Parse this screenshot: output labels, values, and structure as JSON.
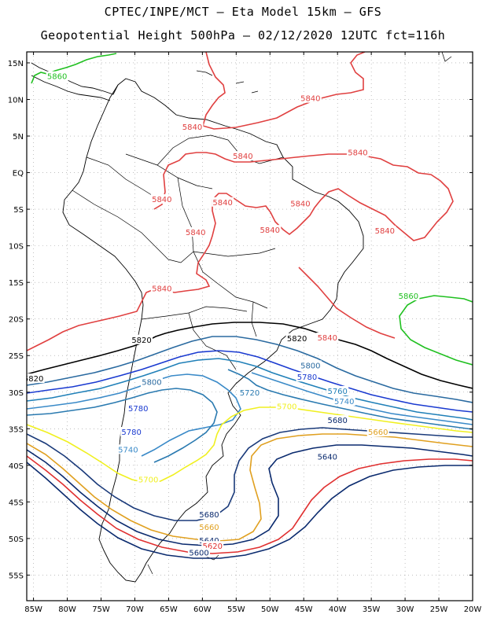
{
  "header": {
    "line1": "CPTEC/INPE/MCT –  Eta Model 15km – GFS",
    "line2": "Geopotential Height 500hPa – 02/12/2020 12UTC fct=116h"
  },
  "axes": {
    "lat_labels": [
      "15N",
      "10N",
      "5N",
      "EQ",
      "5S",
      "10S",
      "15S",
      "20S",
      "25S",
      "30S",
      "35S",
      "40S",
      "45S",
      "50S",
      "55S"
    ],
    "lon_labels": [
      "85W",
      "80W",
      "75W",
      "70W",
      "65W",
      "60W",
      "55W",
      "50W",
      "45W",
      "40W",
      "35W",
      "30W",
      "25W",
      "20W"
    ],
    "lon_range": [
      -86,
      -20
    ],
    "lat_range": [
      -58.5,
      16.5
    ],
    "grid": "dotted"
  },
  "colors": {
    "5580": "#0a2a6e",
    "5600": "#0a2a6e",
    "5620": "#e03030",
    "5640": "#0a2a6e",
    "5660": "#e0a020",
    "5680": "#0a2a6e",
    "5700": "#f0f020",
    "5720": "#2a7ab0",
    "5740": "#3a8ac8",
    "5760": "#2080b8",
    "5780": "#1a3ad0",
    "5800": "#2a6aa0",
    "5820": "#000000",
    "5840": "#e04040",
    "5860": "#20c020"
  },
  "contour_labels": [
    {
      "text": "5860",
      "lon": -81.5,
      "lat": 13.2,
      "level": "5860"
    },
    {
      "text": "5840",
      "lon": -44.0,
      "lat": 10.2,
      "level": "5840"
    },
    {
      "text": "5840",
      "lon": -61.5,
      "lat": 6.3,
      "level": "5840"
    },
    {
      "text": "5840",
      "lon": -54.0,
      "lat": 2.3,
      "level": "5840"
    },
    {
      "text": "5840",
      "lon": -37.0,
      "lat": 2.8,
      "level": "5840"
    },
    {
      "text": "5840",
      "lon": -66.0,
      "lat": -3.6,
      "level": "5840"
    },
    {
      "text": "5840",
      "lon": -57.0,
      "lat": -4.0,
      "level": "5840"
    },
    {
      "text": "5840",
      "lon": -45.5,
      "lat": -4.2,
      "level": "5840"
    },
    {
      "text": "5840",
      "lon": -61.0,
      "lat": -8.1,
      "level": "5840"
    },
    {
      "text": "5840",
      "lon": -50.0,
      "lat": -7.8,
      "level": "5840"
    },
    {
      "text": "5840",
      "lon": -33.0,
      "lat": -7.9,
      "level": "5840"
    },
    {
      "text": "5840",
      "lon": -66.0,
      "lat": -15.8,
      "level": "5840"
    },
    {
      "text": "5840",
      "lon": -41.5,
      "lat": -22.5,
      "level": "5840"
    },
    {
      "text": "5860",
      "lon": -29.5,
      "lat": -16.8,
      "level": "5860"
    },
    {
      "text": "5820",
      "lon": -69.0,
      "lat": -22.8,
      "level": "5820"
    },
    {
      "text": "5820",
      "lon": -46.0,
      "lat": -22.6,
      "level": "5820"
    },
    {
      "text": "5820",
      "lon": -85.0,
      "lat": -28.1,
      "level": "5820"
    },
    {
      "text": "5800",
      "lon": -44.0,
      "lat": -26.3,
      "level": "5800"
    },
    {
      "text": "5800",
      "lon": -67.5,
      "lat": -28.6,
      "level": "5800"
    },
    {
      "text": "5780",
      "lon": -44.5,
      "lat": -27.9,
      "level": "5780"
    },
    {
      "text": "5780",
      "lon": -69.5,
      "lat": -32.2,
      "level": "5780"
    },
    {
      "text": "5780",
      "lon": -70.5,
      "lat": -35.4,
      "level": "5780"
    },
    {
      "text": "5760",
      "lon": -40.0,
      "lat": -29.8,
      "level": "5760"
    },
    {
      "text": "5740",
      "lon": -39.0,
      "lat": -31.2,
      "level": "5740"
    },
    {
      "text": "5740",
      "lon": -71.0,
      "lat": -37.8,
      "level": "5740"
    },
    {
      "text": "5720",
      "lon": -53.0,
      "lat": -30.0,
      "level": "5720"
    },
    {
      "text": "5700",
      "lon": -47.5,
      "lat": -31.9,
      "level": "5700"
    },
    {
      "text": "5700",
      "lon": -68.0,
      "lat": -41.9,
      "level": "5700"
    },
    {
      "text": "5680",
      "lon": -40.0,
      "lat": -33.8,
      "level": "5680"
    },
    {
      "text": "5680",
      "lon": -59.0,
      "lat": -46.7,
      "level": "5680"
    },
    {
      "text": "5660",
      "lon": -34.0,
      "lat": -35.4,
      "level": "5660"
    },
    {
      "text": "5660",
      "lon": -59.0,
      "lat": -48.4,
      "level": "5660"
    },
    {
      "text": "5640",
      "lon": -41.5,
      "lat": -38.8,
      "level": "5640"
    },
    {
      "text": "5640",
      "lon": -59.0,
      "lat": -50.2,
      "level": "5640"
    },
    {
      "text": "5620",
      "lon": -58.5,
      "lat": -51.0,
      "level": "5620"
    },
    {
      "text": "5600",
      "lon": -60.5,
      "lat": -51.9,
      "level": "5600"
    }
  ]
}
